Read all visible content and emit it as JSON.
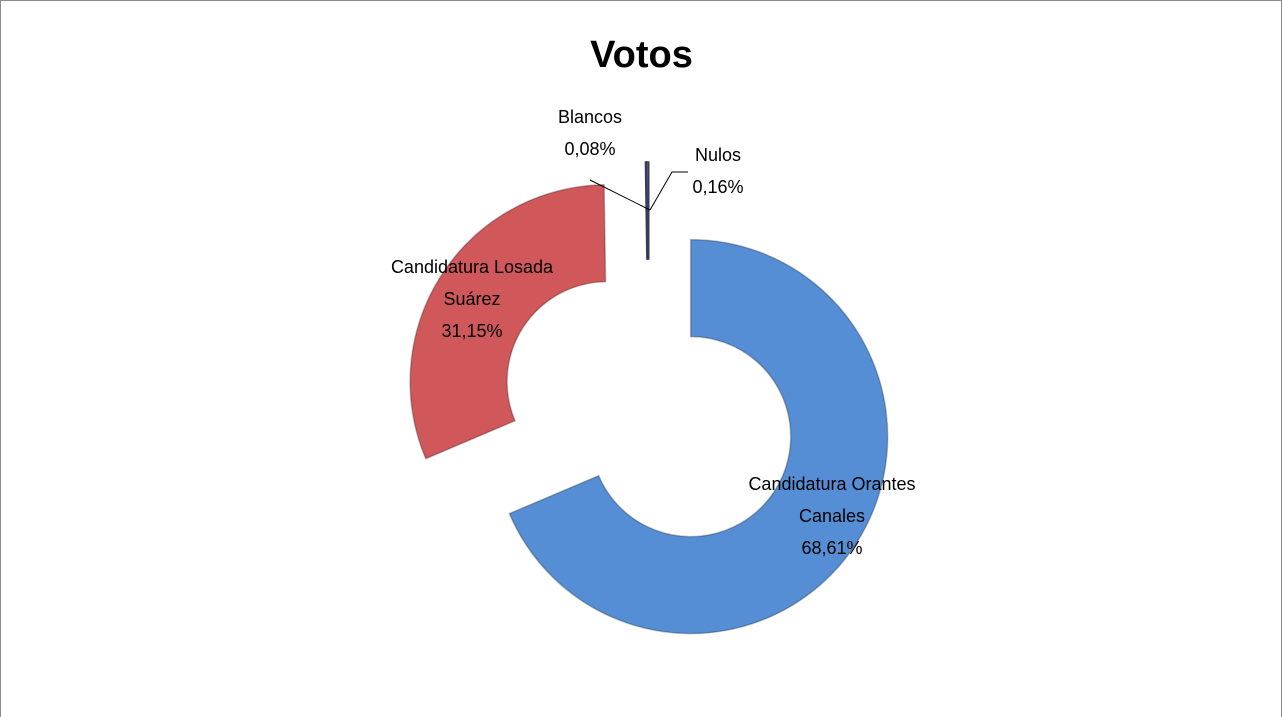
{
  "chart_data": {
    "type": "donut",
    "title": "Votos",
    "categories": [
      "Candidatura Orantes Canales",
      "Candidatura Losada Suárez",
      "Blancos",
      "Nulos"
    ],
    "values": [
      68.61,
      31.15,
      0.08,
      0.16
    ],
    "value_labels": [
      "68,61%",
      "31,15%",
      "0,08%",
      "0,16%"
    ],
    "colors": [
      "#558ed5",
      "#d0575a",
      "#9bbb59",
      "#8064a2"
    ]
  }
}
